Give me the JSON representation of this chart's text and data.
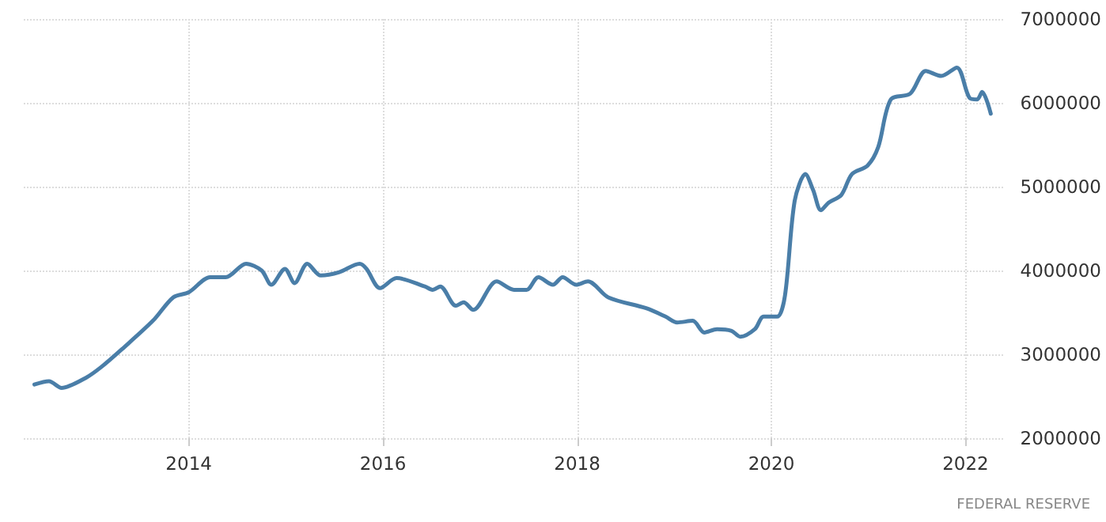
{
  "chart_data": {
    "type": "line",
    "x": [
      2012.41,
      2012.56,
      2012.69,
      2012.94,
      2013.1,
      2013.31,
      2013.63,
      2013.84,
      2014.0,
      2014.22,
      2014.38,
      2014.59,
      2014.75,
      2014.85,
      2014.99,
      2015.09,
      2015.22,
      2015.36,
      2015.55,
      2015.76,
      2015.83,
      2015.97,
      2016.14,
      2016.43,
      2016.51,
      2016.59,
      2016.75,
      2016.83,
      2016.93,
      2017.17,
      2017.35,
      2017.48,
      2017.6,
      2017.75,
      2017.85,
      2017.99,
      2018.11,
      2018.32,
      2018.71,
      2018.91,
      2019.03,
      2019.19,
      2019.31,
      2019.44,
      2019.59,
      2019.68,
      2019.83,
      2019.92,
      2020.06,
      2020.14,
      2020.24,
      2020.35,
      2020.43,
      2020.51,
      2020.59,
      2020.72,
      2020.83,
      2020.99,
      2021.1,
      2021.23,
      2021.43,
      2021.59,
      2021.75,
      2021.91,
      2022.04,
      2022.12,
      2022.17,
      2022.26
    ],
    "series": [
      {
        "color": "#4a7ea8",
        "values": [
          2640000,
          2680000,
          2600000,
          2720000,
          2850000,
          3060000,
          3400000,
          3680000,
          3740000,
          3920000,
          3920000,
          4080000,
          4000000,
          3830000,
          4020000,
          3850000,
          4080000,
          3940000,
          3980000,
          4080000,
          4020000,
          3790000,
          3910000,
          3810000,
          3770000,
          3810000,
          3580000,
          3620000,
          3530000,
          3870000,
          3770000,
          3770000,
          3920000,
          3830000,
          3920000,
          3830000,
          3870000,
          3680000,
          3550000,
          3450000,
          3380000,
          3400000,
          3260000,
          3300000,
          3280000,
          3210000,
          3300000,
          3450000,
          3450000,
          3700000,
          4830000,
          5150000,
          4960000,
          4720000,
          4810000,
          4900000,
          5150000,
          5250000,
          5470000,
          6040000,
          6110000,
          6380000,
          6320000,
          6420000,
          6060000,
          6040000,
          6130000,
          5870000
        ]
      }
    ],
    "xlim": [
      2012.3,
      2022.4
    ],
    "xticks": [
      2014,
      2016,
      2018,
      2020,
      2022
    ],
    "ylim": [
      2000000,
      7000000
    ],
    "yticks": [
      2000000,
      3000000,
      4000000,
      5000000,
      6000000,
      7000000
    ],
    "grid": true,
    "marker": "none",
    "line_style": "solid",
    "annotations": [
      "FEDERAL RESERVE"
    ]
  }
}
